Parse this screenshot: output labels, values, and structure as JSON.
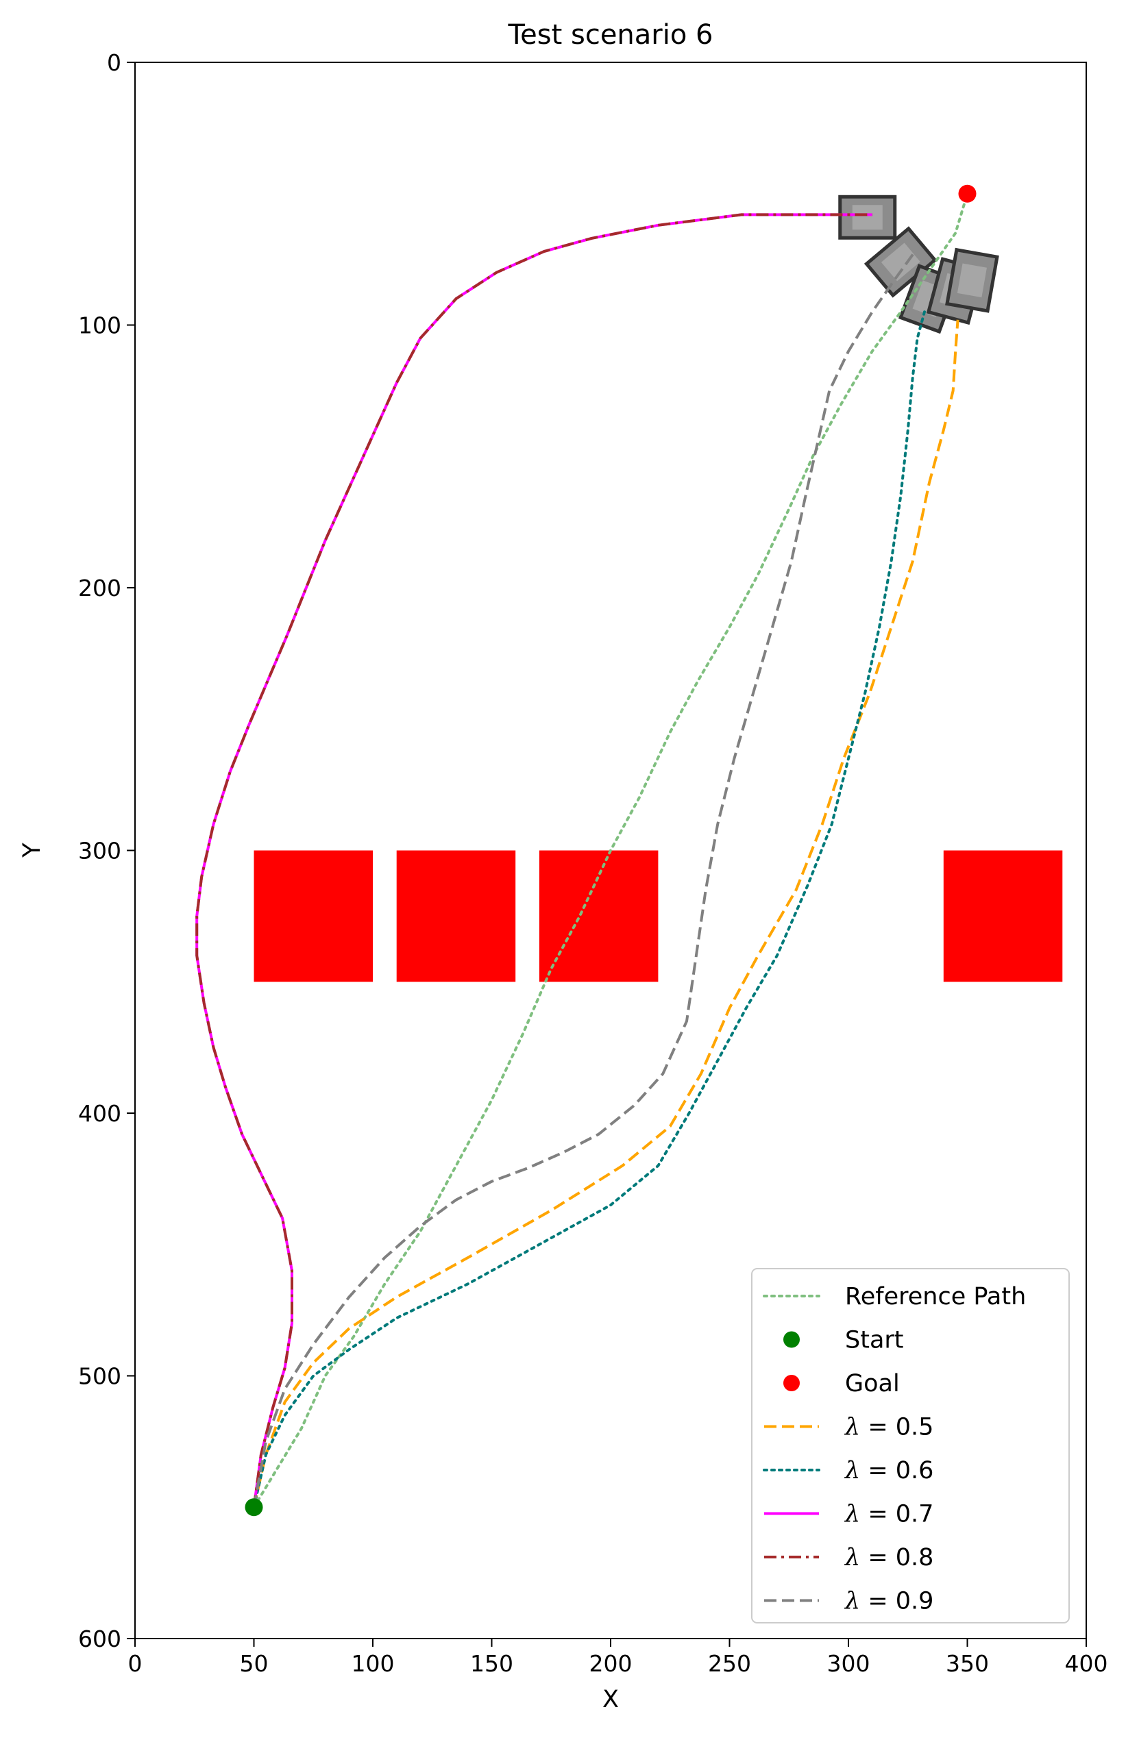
{
  "chart_data": {
    "type": "line",
    "title": "Test scenario 6",
    "xlabel": "X",
    "ylabel": "Y",
    "xlim": [
      0,
      400
    ],
    "ylim": [
      600,
      0
    ],
    "y_inverted": true,
    "xticks": [
      0,
      50,
      100,
      150,
      200,
      250,
      300,
      350,
      400
    ],
    "yticks": [
      0,
      100,
      200,
      300,
      400,
      500,
      600
    ],
    "grid": false,
    "legend_position": "lower-right",
    "obstacles": [
      {
        "x": 50,
        "y": 300,
        "width": 50,
        "height": 50,
        "color": "#ff0000"
      },
      {
        "x": 110,
        "y": 300,
        "width": 50,
        "height": 50,
        "color": "#ff0000"
      },
      {
        "x": 170,
        "y": 300,
        "width": 50,
        "height": 50,
        "color": "#ff0000"
      },
      {
        "x": 340,
        "y": 300,
        "width": 50,
        "height": 50,
        "color": "#ff0000"
      }
    ],
    "vehicles": [
      {
        "x": 308,
        "y": 59,
        "angle": 0
      },
      {
        "x": 322,
        "y": 76,
        "angle": -40
      },
      {
        "x": 334,
        "y": 90,
        "angle": -70
      },
      {
        "x": 345,
        "y": 87,
        "angle": -75
      },
      {
        "x": 352,
        "y": 83,
        "angle": -80
      }
    ],
    "start": {
      "label": "Start",
      "x": 50,
      "y": 550,
      "color": "#008000"
    },
    "goal": {
      "label": "Goal",
      "x": 350,
      "y": 50,
      "color": "#ff0000"
    },
    "series": [
      {
        "name": "Reference Path",
        "color": "#7fbf7f",
        "dash": "dotted",
        "points": [
          [
            50,
            550
          ],
          [
            60,
            535
          ],
          [
            70,
            520
          ],
          [
            80,
            500
          ],
          [
            92,
            485
          ],
          [
            105,
            465
          ],
          [
            120,
            445
          ],
          [
            135,
            420
          ],
          [
            150,
            395
          ],
          [
            163,
            370
          ],
          [
            175,
            345
          ],
          [
            187,
            325
          ],
          [
            200,
            300
          ],
          [
            212,
            280
          ],
          [
            225,
            255
          ],
          [
            237,
            235
          ],
          [
            250,
            215
          ],
          [
            262,
            195
          ],
          [
            275,
            170
          ],
          [
            285,
            150
          ],
          [
            297,
            130
          ],
          [
            310,
            110
          ],
          [
            322,
            95
          ],
          [
            335,
            78
          ],
          [
            345,
            65
          ],
          [
            350,
            50
          ]
        ]
      },
      {
        "name": "λ = 0.5",
        "color": "#ffa500",
        "dash": "dashed",
        "points": [
          [
            50,
            550
          ],
          [
            55,
            530
          ],
          [
            63,
            510
          ],
          [
            75,
            495
          ],
          [
            90,
            482
          ],
          [
            110,
            470
          ],
          [
            140,
            455
          ],
          [
            175,
            437
          ],
          [
            205,
            420
          ],
          [
            225,
            405
          ],
          [
            238,
            385
          ],
          [
            250,
            360
          ],
          [
            262,
            340
          ],
          [
            278,
            315
          ],
          [
            289,
            290
          ],
          [
            298,
            265
          ],
          [
            309,
            240
          ],
          [
            318,
            215
          ],
          [
            327,
            190
          ],
          [
            334,
            160
          ],
          [
            340,
            140
          ],
          [
            344,
            125
          ],
          [
            345,
            110
          ],
          [
            346,
            98
          ]
        ]
      },
      {
        "name": "λ = 0.6",
        "color": "#007a7a",
        "dash": "dotted",
        "points": [
          [
            50,
            550
          ],
          [
            55,
            530
          ],
          [
            63,
            515
          ],
          [
            75,
            500
          ],
          [
            90,
            490
          ],
          [
            110,
            478
          ],
          [
            140,
            465
          ],
          [
            170,
            450
          ],
          [
            200,
            435
          ],
          [
            220,
            420
          ],
          [
            233,
            400
          ],
          [
            245,
            380
          ],
          [
            257,
            360
          ],
          [
            270,
            340
          ],
          [
            283,
            313
          ],
          [
            293,
            290
          ],
          [
            300,
            265
          ],
          [
            307,
            240
          ],
          [
            313,
            215
          ],
          [
            318,
            190
          ],
          [
            322,
            165
          ],
          [
            325,
            140
          ],
          [
            327,
            120
          ],
          [
            329,
            105
          ],
          [
            332,
            95
          ]
        ]
      },
      {
        "name": "λ = 0.7",
        "color": "#ff00ff",
        "dash": "solid",
        "points": [
          [
            50,
            550
          ],
          [
            53,
            530
          ],
          [
            58,
            512
          ],
          [
            63,
            497
          ],
          [
            66,
            480
          ],
          [
            66,
            460
          ],
          [
            62,
            440
          ],
          [
            54,
            425
          ],
          [
            45,
            408
          ],
          [
            38,
            390
          ],
          [
            33,
            375
          ],
          [
            29,
            358
          ],
          [
            26,
            340
          ],
          [
            26,
            325
          ],
          [
            28,
            310
          ],
          [
            33,
            290
          ],
          [
            40,
            270
          ],
          [
            48,
            252
          ],
          [
            56,
            235
          ],
          [
            64,
            218
          ],
          [
            72,
            200
          ],
          [
            80,
            182
          ],
          [
            90,
            162
          ],
          [
            100,
            142
          ],
          [
            110,
            122
          ],
          [
            120,
            105
          ],
          [
            135,
            90
          ],
          [
            152,
            80
          ],
          [
            172,
            72
          ],
          [
            192,
            67
          ],
          [
            220,
            62
          ],
          [
            255,
            58
          ],
          [
            295,
            58
          ],
          [
            310,
            58
          ]
        ]
      },
      {
        "name": "λ = 0.8",
        "color": "#a52a2a",
        "dash": "dashdot",
        "points": [
          [
            50,
            550
          ],
          [
            53,
            530
          ],
          [
            58,
            512
          ],
          [
            63,
            497
          ],
          [
            66,
            480
          ],
          [
            66,
            460
          ],
          [
            62,
            440
          ],
          [
            54,
            425
          ],
          [
            45,
            408
          ],
          [
            38,
            390
          ],
          [
            33,
            375
          ],
          [
            29,
            358
          ],
          [
            26,
            340
          ],
          [
            26,
            325
          ],
          [
            28,
            310
          ],
          [
            33,
            290
          ],
          [
            40,
            270
          ],
          [
            48,
            252
          ],
          [
            56,
            235
          ],
          [
            64,
            218
          ],
          [
            72,
            200
          ],
          [
            80,
            182
          ],
          [
            90,
            162
          ],
          [
            100,
            142
          ],
          [
            110,
            122
          ],
          [
            120,
            105
          ],
          [
            135,
            90
          ],
          [
            152,
            80
          ],
          [
            172,
            72
          ],
          [
            192,
            67
          ],
          [
            220,
            62
          ],
          [
            255,
            58
          ],
          [
            295,
            58
          ],
          [
            310,
            58
          ]
        ]
      },
      {
        "name": "λ = 0.9",
        "color": "#808080",
        "dash": "dashed",
        "points": [
          [
            50,
            550
          ],
          [
            55,
            525
          ],
          [
            63,
            505
          ],
          [
            75,
            488
          ],
          [
            90,
            470
          ],
          [
            105,
            455
          ],
          [
            120,
            443
          ],
          [
            135,
            433
          ],
          [
            150,
            426
          ],
          [
            165,
            421
          ],
          [
            180,
            415
          ],
          [
            195,
            408
          ],
          [
            210,
            397
          ],
          [
            222,
            385
          ],
          [
            232,
            365
          ],
          [
            236,
            340
          ],
          [
            240,
            315
          ],
          [
            245,
            290
          ],
          [
            252,
            265
          ],
          [
            260,
            240
          ],
          [
            268,
            215
          ],
          [
            276,
            190
          ],
          [
            282,
            165
          ],
          [
            287,
            145
          ],
          [
            292,
            125
          ],
          [
            300,
            110
          ],
          [
            310,
            95
          ],
          [
            320,
            82
          ],
          [
            328,
            72
          ]
        ]
      }
    ]
  }
}
